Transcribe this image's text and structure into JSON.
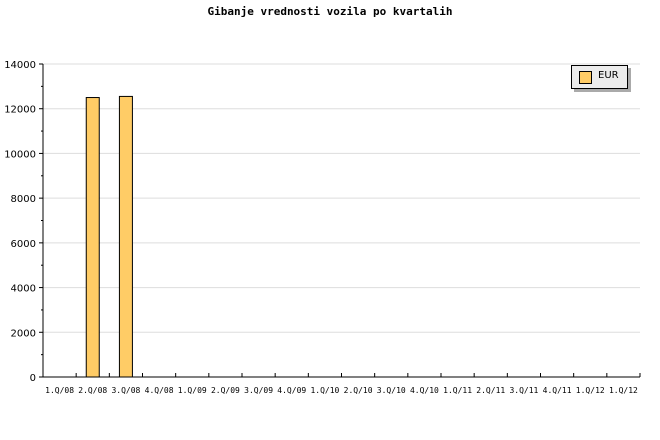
{
  "chart_data": {
    "type": "bar",
    "title": "Gibanje vrednosti vozila po kvartalih",
    "categories": [
      "1.Q/08",
      "2.Q/08",
      "3.Q/08",
      "4.Q/08",
      "1.Q/09",
      "2.Q/09",
      "3.Q/09",
      "4.Q/09",
      "1.Q/10",
      "2.Q/10",
      "3.Q/10",
      "4.Q/10",
      "1.Q/11",
      "2.Q/11",
      "3.Q/11",
      "4.Q/11",
      "1.Q/12",
      "1.Q/12"
    ],
    "series": [
      {
        "name": "EUR",
        "color": "#ffcc66",
        "values": [
          0,
          12500,
          12550,
          0,
          0,
          0,
          0,
          0,
          0,
          0,
          0,
          0,
          0,
          0,
          0,
          0,
          0,
          0
        ]
      }
    ],
    "ylim": [
      0,
      14000
    ],
    "yticks": [
      "0",
      "2000",
      "4000",
      "6000",
      "8000",
      "10000",
      "12000",
      "14000"
    ],
    "grid": true,
    "legend": "top-right"
  }
}
